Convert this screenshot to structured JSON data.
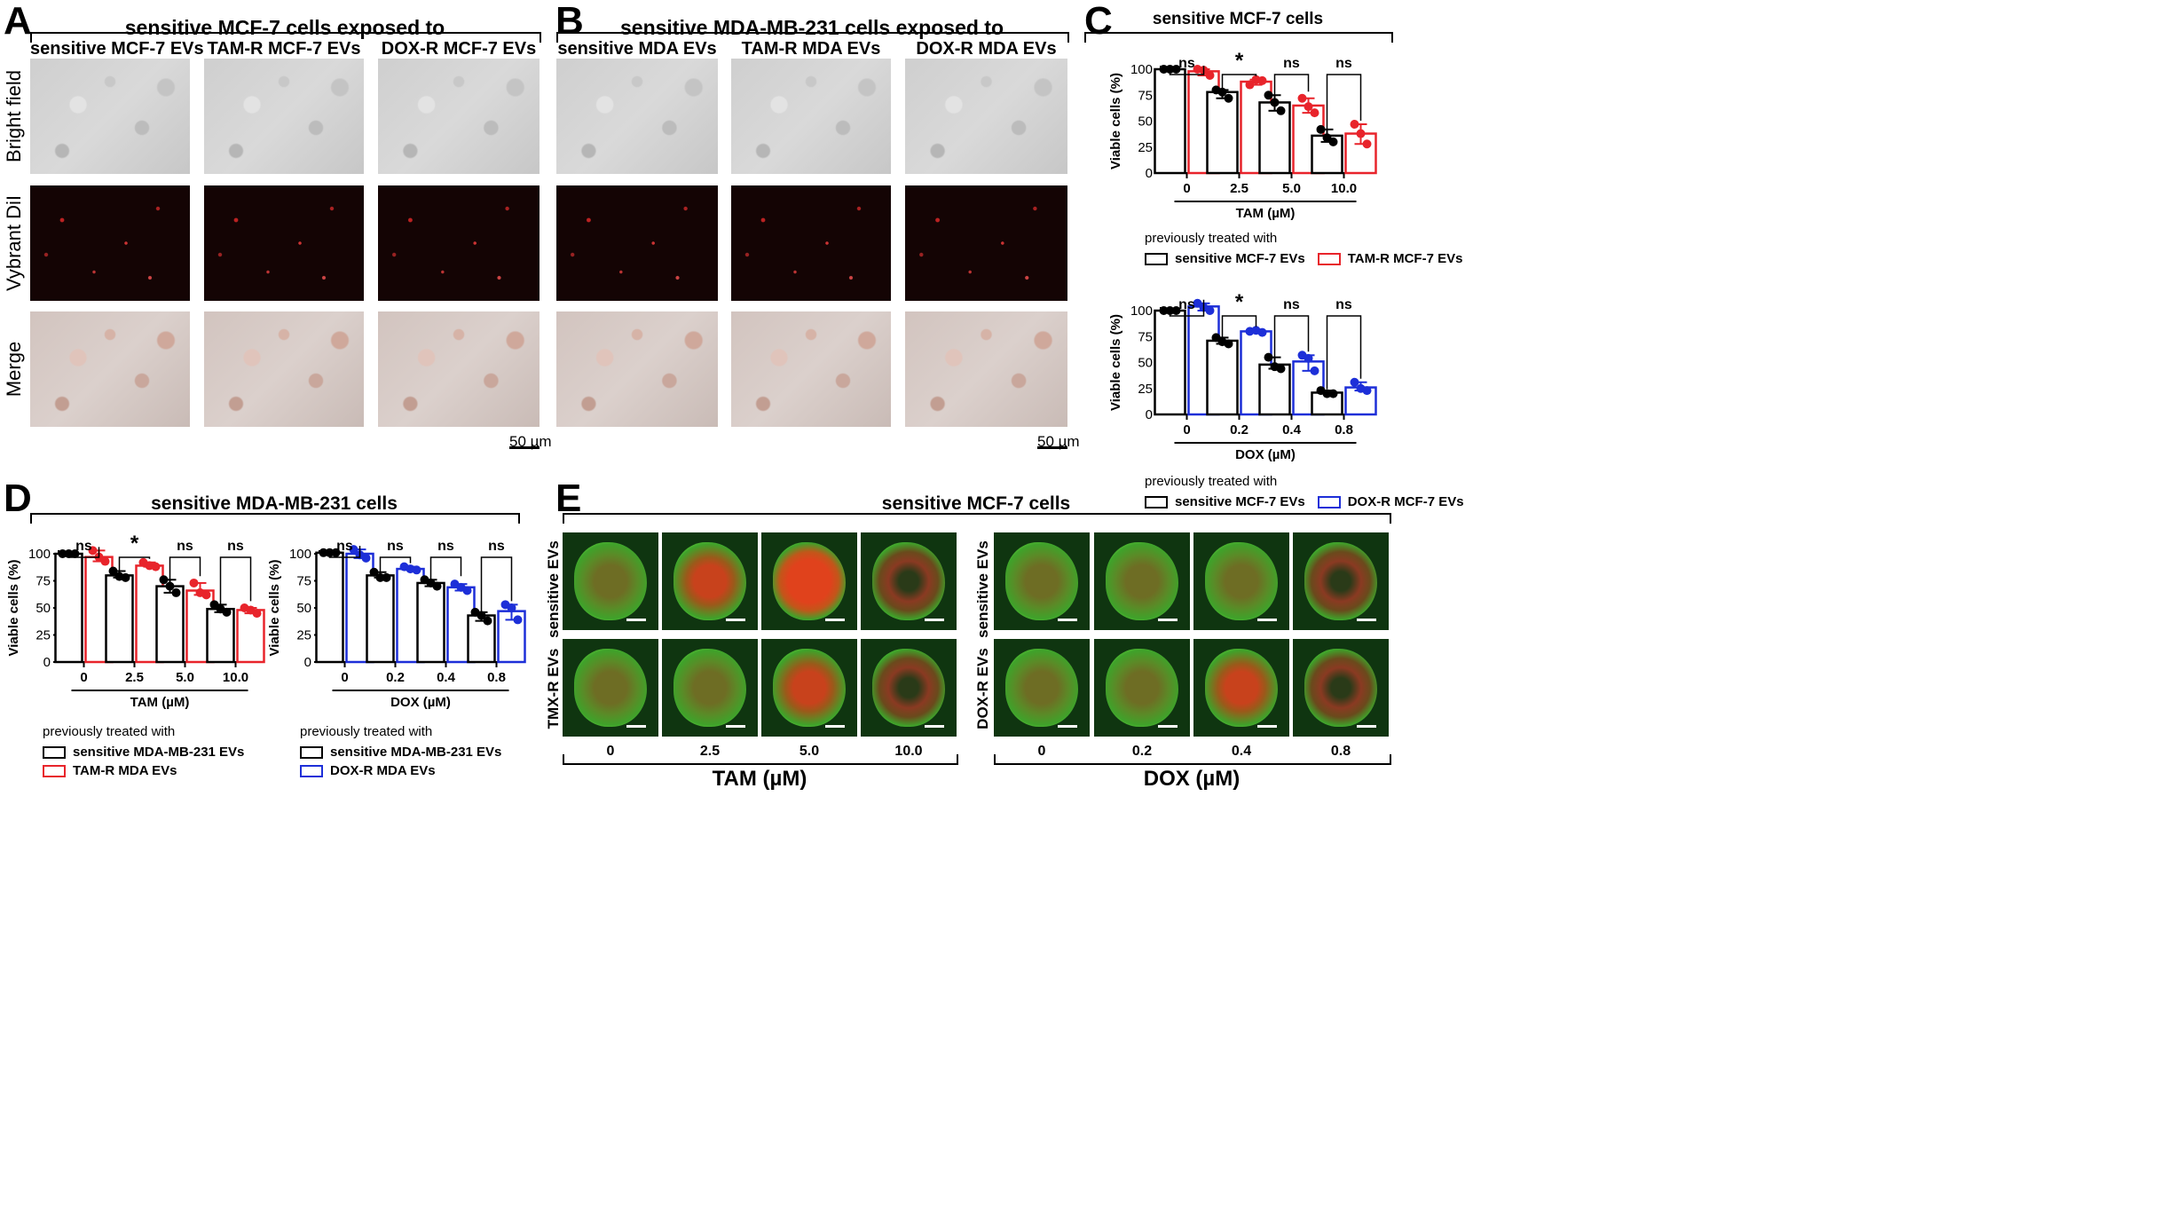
{
  "panels": {
    "A": {
      "label": "A",
      "title": "sensitive MCF-7 cells exposed to",
      "columns": [
        "sensitive MCF-7 EVs",
        "TAM-R MCF-7 EVs",
        "DOX-R MCF-7 EVs"
      ],
      "rows": [
        "Bright field",
        "Vybrant DiI",
        "Merge"
      ],
      "scale_bar": "50 µm"
    },
    "B": {
      "label": "B",
      "title": "sensitive MDA-MB-231 cells exposed to",
      "columns": [
        "sensitive MDA EVs",
        "TAM-R MDA EVs",
        "DOX-R MDA EVs"
      ],
      "scale_bar": "50 µm"
    },
    "C": {
      "label": "C",
      "title": "sensitive MCF-7 cells",
      "legend_caption": "previously treated with",
      "legend_top": [
        "sensitive MCF-7 EVs",
        "TAM-R MCF-7 EVs"
      ],
      "legend_bottom": [
        "sensitive MCF-7 EVs",
        "DOX-R MCF-7 EVs"
      ]
    },
    "D": {
      "label": "D",
      "title": "sensitive MDA-MB-231 cells",
      "legend_caption": "previously treated with",
      "legend_left": [
        "sensitive MDA-MB-231 EVs",
        "TAM-R MDA EVs"
      ],
      "legend_right": [
        "sensitive MDA-MB-231 EVs",
        "DOX-R MDA EVs"
      ]
    },
    "E": {
      "label": "E",
      "title": "sensitive MCF-7 cells",
      "rows_left": [
        "sensitive EVs",
        "TMX-R EVs"
      ],
      "rows_right": [
        "sensitive EVs",
        "DOX-R EVs"
      ],
      "doses_left": [
        "0",
        "2.5",
        "5.0",
        "10.0"
      ],
      "doses_right": [
        "0",
        "0.2",
        "0.4",
        "0.8"
      ],
      "xlabel_left": "TAM (µM)",
      "xlabel_right": "DOX (µM)"
    }
  },
  "colors": {
    "sensitive": "#000000",
    "tam_r": "#e8242b",
    "dox_r": "#1d2fd8"
  },
  "chart_data": [
    {
      "id": "C-top",
      "type": "bar",
      "title": "sensitive MCF-7 cells",
      "xlabel": "TAM (µM)",
      "ylabel": "Viable cells (%)",
      "ylim": [
        0,
        100
      ],
      "yticks": [
        0,
        25,
        50,
        75,
        100
      ],
      "categories": [
        "0",
        "2.5",
        "5.0",
        "10.0"
      ],
      "significance": [
        "ns",
        "*",
        "ns",
        "ns"
      ],
      "series": [
        {
          "name": "sensitive MCF-7 EVs",
          "color": "#000000",
          "values": [
            100,
            78,
            68,
            36
          ],
          "points": [
            [
              100,
              100,
              100
            ],
            [
              80,
              78,
              72
            ],
            [
              75,
              68,
              60
            ],
            [
              42,
              34,
              30
            ]
          ]
        },
        {
          "name": "TAM-R MCF-7 EVs",
          "color": "#e8242b",
          "values": [
            98,
            88,
            65,
            38
          ],
          "points": [
            [
              100,
              99,
              94
            ],
            [
              85,
              90,
              89
            ],
            [
              72,
              64,
              58
            ],
            [
              47,
              38,
              28
            ]
          ]
        }
      ]
    },
    {
      "id": "C-bottom",
      "type": "bar",
      "xlabel": "DOX (µM)",
      "ylabel": "Viable cells (%)",
      "ylim": [
        0,
        100
      ],
      "yticks": [
        0,
        25,
        50,
        75,
        100
      ],
      "categories": [
        "0",
        "0.2",
        "0.4",
        "0.8"
      ],
      "significance": [
        "ns",
        "*",
        "ns",
        "ns"
      ],
      "series": [
        {
          "name": "sensitive MCF-7 EVs",
          "color": "#000000",
          "values": [
            100,
            71,
            48,
            21
          ],
          "points": [
            [
              100,
              100,
              100
            ],
            [
              74,
              70,
              68
            ],
            [
              55,
              46,
              44
            ],
            [
              23,
              20,
              20
            ]
          ]
        },
        {
          "name": "DOX-R MCF-7 EVs",
          "color": "#1d2fd8",
          "values": [
            104,
            80,
            51,
            26
          ],
          "points": [
            [
              107,
              103,
              100
            ],
            [
              80,
              81,
              79
            ],
            [
              57,
              54,
              42
            ],
            [
              31,
              25,
              23
            ]
          ]
        }
      ]
    },
    {
      "id": "D-left",
      "type": "bar",
      "title": "sensitive MDA-MB-231 cells",
      "xlabel": "TAM (µM)",
      "ylabel": "Viable cells (%)",
      "ylim": [
        0,
        100
      ],
      "yticks": [
        0,
        25,
        50,
        75,
        100
      ],
      "categories": [
        "0",
        "2.5",
        "5.0",
        "10.0"
      ],
      "significance": [
        "ns",
        "*",
        "ns",
        "ns"
      ],
      "series": [
        {
          "name": "sensitive MDA-MB-231 EVs",
          "color": "#000000",
          "values": [
            100,
            80,
            70,
            49
          ],
          "points": [
            [
              100,
              100,
              100
            ],
            [
              84,
              79,
              78
            ],
            [
              76,
              70,
              64
            ],
            [
              53,
              49,
              46
            ]
          ]
        },
        {
          "name": "TAM-R MDA EVs",
          "color": "#e8242b",
          "values": [
            97,
            89,
            66,
            48
          ],
          "points": [
            [
              103,
              97,
              93
            ],
            [
              92,
              89,
              88
            ],
            [
              73,
              64,
              62
            ],
            [
              50,
              48,
              45
            ]
          ]
        }
      ]
    },
    {
      "id": "D-right",
      "type": "bar",
      "xlabel": "DOX (µM)",
      "ylabel": "Viable cells (%)",
      "ylim": [
        0,
        100
      ],
      "yticks": [
        0,
        25,
        50,
        75,
        100
      ],
      "categories": [
        "0",
        "0.2",
        "0.4",
        "0.8"
      ],
      "significance": [
        "ns",
        "ns",
        "ns",
        "ns"
      ],
      "series": [
        {
          "name": "sensitive MDA-MB-231 EVs",
          "color": "#000000",
          "values": [
            101,
            80,
            73,
            43
          ],
          "points": [
            [
              101,
              101,
              101
            ],
            [
              83,
              78,
              78
            ],
            [
              76,
              73,
              70
            ],
            [
              46,
              43,
              38
            ]
          ]
        },
        {
          "name": "DOX-R MDA EVs",
          "color": "#1d2fd8",
          "values": [
            100,
            86,
            69,
            47
          ],
          "points": [
            [
              104,
              99,
              96
            ],
            [
              88,
              86,
              85
            ],
            [
              72,
              69,
              66
            ],
            [
              53,
              50,
              39
            ]
          ]
        }
      ]
    }
  ]
}
